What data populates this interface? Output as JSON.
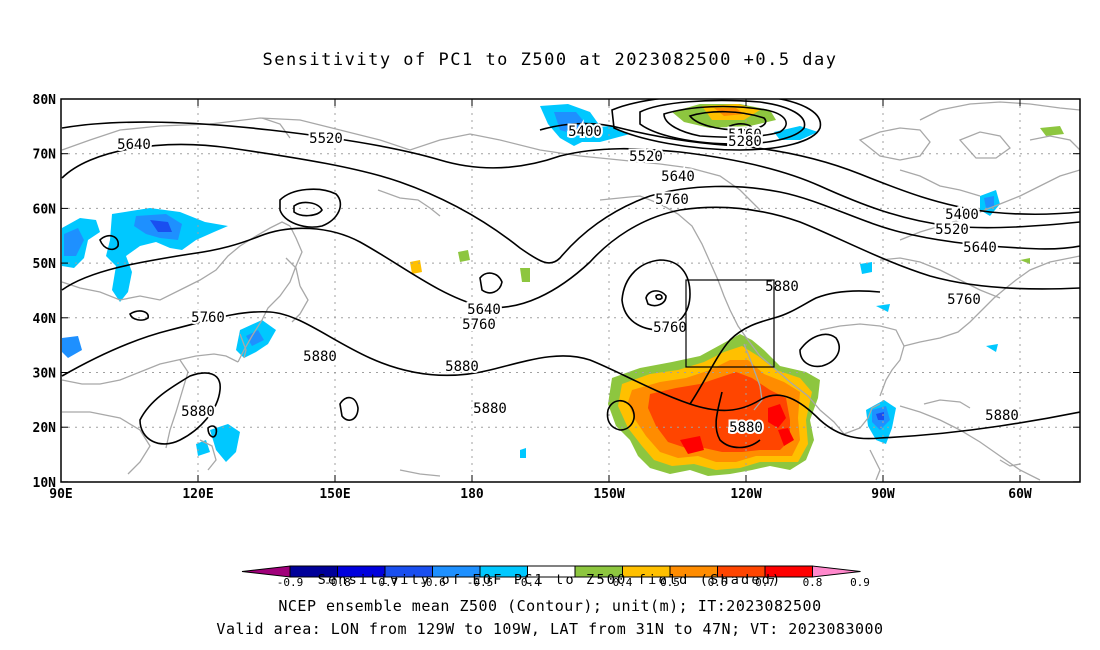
{
  "title": "Sensitivity of PC1 to Z500 at 2023082500 +0.5 day",
  "map": {
    "lat_labels": [
      "80N",
      "70N",
      "60N",
      "50N",
      "40N",
      "30N",
      "20N",
      "10N"
    ],
    "lon_labels": [
      "90E",
      "120E",
      "150E",
      "180",
      "150W",
      "120W",
      "90W",
      "60W"
    ],
    "contour_labels": [
      {
        "text": "5640"
      },
      {
        "text": "5520"
      },
      {
        "text": "5400"
      },
      {
        "text": "5160"
      },
      {
        "text": "5280"
      },
      {
        "text": "5520"
      },
      {
        "text": "5640"
      },
      {
        "text": "5760"
      },
      {
        "text": "5400"
      },
      {
        "text": "5520"
      },
      {
        "text": "5640"
      },
      {
        "text": "5760"
      },
      {
        "text": "5880"
      },
      {
        "text": "5640"
      },
      {
        "text": "5760"
      },
      {
        "text": "5760"
      },
      {
        "text": "5760"
      },
      {
        "text": "5880"
      },
      {
        "text": "5880"
      },
      {
        "text": "5880"
      },
      {
        "text": "5880"
      },
      {
        "text": "5880"
      },
      {
        "text": "5880"
      }
    ],
    "valid_area_box": {
      "lon_min": -129,
      "lon_max": -109,
      "lat_min": 31,
      "lat_max": 47
    },
    "colors": {
      "coast": "#a8a8a8",
      "grid": "#a0a0a0",
      "contour": "#000000",
      "box": "#000000"
    }
  },
  "colorbar": {
    "colors": [
      "#a0007a",
      "#000099",
      "#0000dd",
      "#1a4ff0",
      "#1e90ff",
      "#00c8ff",
      "#ffffff",
      "#8dc63f",
      "#ffc000",
      "#ff8c00",
      "#ff4500",
      "#ff0000",
      "#ff88cc"
    ],
    "tick_labels": [
      "-0.9",
      "-0.8",
      "-0.7",
      "-0.6",
      "-0.5",
      "-0.4",
      "0.4",
      "0.5",
      "0.6",
      "0.7",
      "0.8",
      "0.9"
    ]
  },
  "captions": {
    "line1": "Sensitivity of EOF PC1 to Z500 field (Shaded)",
    "line2": "NCEP ensemble mean Z500 (Contour); unit(m); IT:2023082500",
    "line3": "Valid area: LON from 129W to 109W, LAT from 31N to 47N; VT: 2023083000"
  }
}
